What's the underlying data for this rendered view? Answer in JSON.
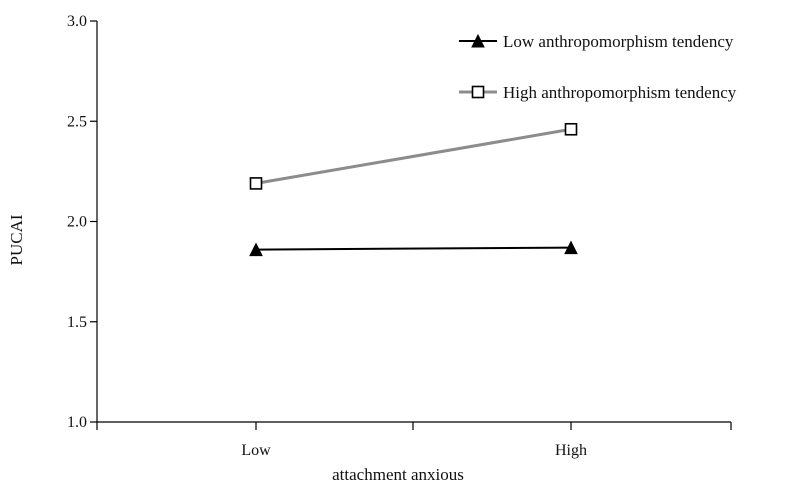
{
  "chart_data": {
    "type": "line",
    "xlabel": "attachment anxious",
    "ylabel": "PUCAI",
    "categories": [
      "Low",
      "High"
    ],
    "ylim": [
      1.0,
      3.0
    ],
    "yticks": [
      "1.0",
      "1.5",
      "2.0",
      "2.5",
      "3.0"
    ],
    "grid": false,
    "legend_position": "top-right",
    "series": [
      {
        "name": "Low anthropomorphism tendency",
        "values": [
          1.86,
          1.87
        ],
        "color": "#000000",
        "marker": "filled-triangle"
      },
      {
        "name": "High anthropomorphism tendency",
        "values": [
          2.19,
          2.46
        ],
        "color": "#8c8c8c",
        "marker": "open-square"
      }
    ]
  }
}
